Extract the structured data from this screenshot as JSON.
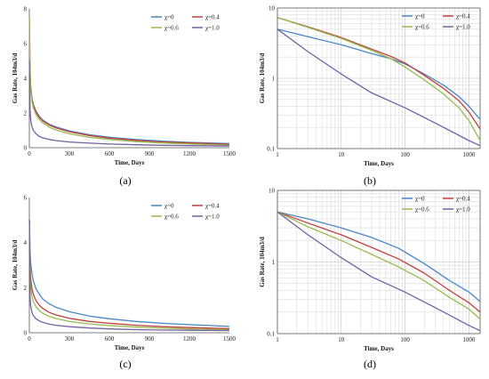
{
  "colors": {
    "chi0": "#4a86c5",
    "chi04": "#c0403c",
    "chi06": "#97bb4f",
    "chi10": "#7460a0"
  },
  "chart_data": [
    {
      "type": "line",
      "caption": "(a)",
      "xlabel": "Time, Days",
      "ylabel": "Gas Rate, 104m3/d",
      "xscale": "linear",
      "yscale": "linear",
      "xlim": [
        0,
        1500
      ],
      "ylim": [
        0,
        8
      ],
      "xticks": [
        "0",
        "300",
        "600",
        "900",
        "1200",
        "1500"
      ],
      "yticks": [
        "0",
        "2",
        "4",
        "6",
        "8"
      ],
      "grid": false,
      "legend": "top-right",
      "series": [
        {
          "name": "χ=0",
          "color": "#4a86c5",
          "x": [
            1,
            5,
            10,
            20,
            30,
            50,
            75,
            100,
            150,
            200,
            300,
            450,
            600,
            800,
            1000,
            1200,
            1500
          ],
          "y": [
            5,
            3.9,
            3.4,
            2.8,
            2.5,
            2.1,
            1.8,
            1.6,
            1.35,
            1.2,
            0.97,
            0.75,
            0.6,
            0.47,
            0.38,
            0.31,
            0.24
          ]
        },
        {
          "name": "χ=0.4",
          "color": "#c0403c",
          "x": [
            1,
            5,
            10,
            20,
            30,
            50,
            75,
            100,
            150,
            200,
            300,
            450,
            600,
            800,
            1000,
            1200,
            1500
          ],
          "y": [
            7.5,
            4.5,
            3.6,
            2.8,
            2.45,
            2.05,
            1.75,
            1.55,
            1.3,
            1.14,
            0.92,
            0.7,
            0.55,
            0.42,
            0.33,
            0.27,
            0.2
          ]
        },
        {
          "name": "χ=0.6",
          "color": "#97bb4f",
          "x": [
            1,
            5,
            10,
            20,
            30,
            50,
            75,
            100,
            150,
            200,
            300,
            450,
            600,
            800,
            1000,
            1200,
            1500
          ],
          "y": [
            7.5,
            4.3,
            3.4,
            2.65,
            2.3,
            1.9,
            1.62,
            1.43,
            1.18,
            1.02,
            0.8,
            0.6,
            0.47,
            0.35,
            0.27,
            0.21,
            0.15
          ]
        },
        {
          "name": "χ=1.0",
          "color": "#7460a0",
          "x": [
            1,
            5,
            10,
            20,
            30,
            50,
            75,
            100,
            150,
            200,
            300,
            450,
            600,
            800,
            1000,
            1200,
            1500
          ],
          "y": [
            5,
            2.2,
            1.6,
            1.2,
            1.0,
            0.8,
            0.65,
            0.57,
            0.47,
            0.41,
            0.33,
            0.26,
            0.21,
            0.17,
            0.14,
            0.12,
            0.1
          ]
        }
      ]
    },
    {
      "type": "line",
      "caption": "(b)",
      "xlabel": "Time, Days",
      "ylabel": "Gas Rate, 104m3/d",
      "xscale": "log",
      "yscale": "log",
      "xlim": [
        1,
        1500
      ],
      "ylim": [
        0.1,
        10
      ],
      "xticks": [
        "1",
        "10",
        "100",
        "1000"
      ],
      "yticks": [
        "0.1",
        "1",
        "10"
      ],
      "grid": true,
      "legend": "top-right",
      "series": [
        {
          "name": "χ=0",
          "color": "#4a86c5",
          "x": [
            1,
            3,
            10,
            30,
            60,
            100,
            200,
            400,
            700,
            1000,
            1500
          ],
          "y": [
            5,
            3.9,
            3.0,
            2.25,
            1.9,
            1.6,
            1.15,
            0.8,
            0.55,
            0.4,
            0.26
          ]
        },
        {
          "name": "χ=0.4",
          "color": "#c0403c",
          "x": [
            1,
            3,
            10,
            30,
            60,
            100,
            200,
            400,
            700,
            1000,
            1500
          ],
          "y": [
            7.3,
            5.4,
            3.8,
            2.6,
            2.05,
            1.65,
            1.1,
            0.72,
            0.48,
            0.33,
            0.19
          ]
        },
        {
          "name": "χ=0.6",
          "color": "#97bb4f",
          "x": [
            1,
            3,
            10,
            30,
            60,
            100,
            200,
            400,
            700,
            1000,
            1500
          ],
          "y": [
            7.3,
            5.3,
            3.7,
            2.5,
            1.9,
            1.45,
            0.95,
            0.6,
            0.38,
            0.25,
            0.13
          ]
        },
        {
          "name": "χ=1.0",
          "color": "#7460a0",
          "x": [
            1,
            3,
            10,
            30,
            100,
            300,
            1000,
            1500
          ],
          "y": [
            5,
            2.4,
            1.15,
            0.62,
            0.38,
            0.23,
            0.13,
            0.11
          ]
        }
      ]
    },
    {
      "type": "line",
      "caption": "(c)",
      "xlabel": "Time, Days",
      "ylabel": "Gas Rate, 104m3/d",
      "xscale": "linear",
      "yscale": "linear",
      "xlim": [
        0,
        1500
      ],
      "ylim": [
        0,
        6
      ],
      "xticks": [
        "0",
        "300",
        "600",
        "900",
        "1200",
        "1500"
      ],
      "yticks": [
        "0",
        "2",
        "4",
        "6"
      ],
      "grid": false,
      "legend": "top-right",
      "series": [
        {
          "name": "χ=0",
          "color": "#4a86c5",
          "x": [
            1,
            5,
            10,
            20,
            30,
            50,
            75,
            100,
            150,
            200,
            300,
            450,
            600,
            800,
            1000,
            1200,
            1500
          ],
          "y": [
            5,
            3.6,
            3.1,
            2.6,
            2.3,
            1.95,
            1.7,
            1.5,
            1.28,
            1.13,
            0.93,
            0.74,
            0.62,
            0.5,
            0.42,
            0.36,
            0.28
          ]
        },
        {
          "name": "χ=0.4",
          "color": "#c0403c",
          "x": [
            1,
            5,
            10,
            20,
            30,
            50,
            75,
            100,
            150,
            200,
            300,
            450,
            600,
            800,
            1000,
            1200,
            1500
          ],
          "y": [
            5,
            2.9,
            2.4,
            1.95,
            1.7,
            1.42,
            1.22,
            1.08,
            0.9,
            0.79,
            0.64,
            0.5,
            0.42,
            0.33,
            0.27,
            0.23,
            0.18
          ]
        },
        {
          "name": "χ=0.6",
          "color": "#97bb4f",
          "x": [
            1,
            5,
            10,
            20,
            30,
            50,
            75,
            100,
            150,
            200,
            300,
            450,
            600,
            800,
            1000,
            1200,
            1500
          ],
          "y": [
            5,
            2.5,
            2.0,
            1.6,
            1.38,
            1.15,
            0.98,
            0.87,
            0.72,
            0.63,
            0.5,
            0.39,
            0.32,
            0.25,
            0.2,
            0.17,
            0.13
          ]
        },
        {
          "name": "χ=1.0",
          "color": "#7460a0",
          "x": [
            1,
            5,
            10,
            20,
            30,
            50,
            75,
            100,
            150,
            200,
            300,
            450,
            600,
            800,
            1000,
            1200,
            1500
          ],
          "y": [
            5,
            1.6,
            1.2,
            0.9,
            0.76,
            0.62,
            0.52,
            0.46,
            0.38,
            0.33,
            0.27,
            0.21,
            0.17,
            0.14,
            0.12,
            0.11,
            0.1
          ]
        }
      ]
    },
    {
      "type": "line",
      "caption": "(d)",
      "xlabel": "Time, Days",
      "ylabel": "Gas Rate, 104m3/d",
      "xscale": "log",
      "yscale": "log",
      "xlim": [
        1,
        1500
      ],
      "ylim": [
        0.1,
        10
      ],
      "xticks": [
        "1",
        "10",
        "100",
        "1000"
      ],
      "yticks": [
        "0.1",
        "1",
        "10"
      ],
      "grid": true,
      "legend": "top-right",
      "series": [
        {
          "name": "χ=0",
          "color": "#4a86c5",
          "x": [
            1,
            3,
            10,
            30,
            80,
            200,
            500,
            1000,
            1500
          ],
          "y": [
            5,
            4.0,
            3.0,
            2.2,
            1.55,
            0.95,
            0.55,
            0.38,
            0.28
          ]
        },
        {
          "name": "χ=0.4",
          "color": "#c0403c",
          "x": [
            1,
            3,
            10,
            30,
            80,
            200,
            500,
            1000,
            1500
          ],
          "y": [
            5,
            3.5,
            2.4,
            1.6,
            1.1,
            0.7,
            0.4,
            0.27,
            0.2
          ]
        },
        {
          "name": "χ=0.6",
          "color": "#97bb4f",
          "x": [
            1,
            3,
            10,
            30,
            80,
            200,
            500,
            1000,
            1500
          ],
          "y": [
            5,
            3.1,
            2.0,
            1.28,
            0.85,
            0.55,
            0.32,
            0.22,
            0.16
          ]
        },
        {
          "name": "χ=1.0",
          "color": "#7460a0",
          "x": [
            1,
            3,
            10,
            30,
            100,
            300,
            1000,
            1500
          ],
          "y": [
            5,
            2.4,
            1.15,
            0.62,
            0.38,
            0.23,
            0.13,
            0.11
          ]
        }
      ]
    }
  ]
}
